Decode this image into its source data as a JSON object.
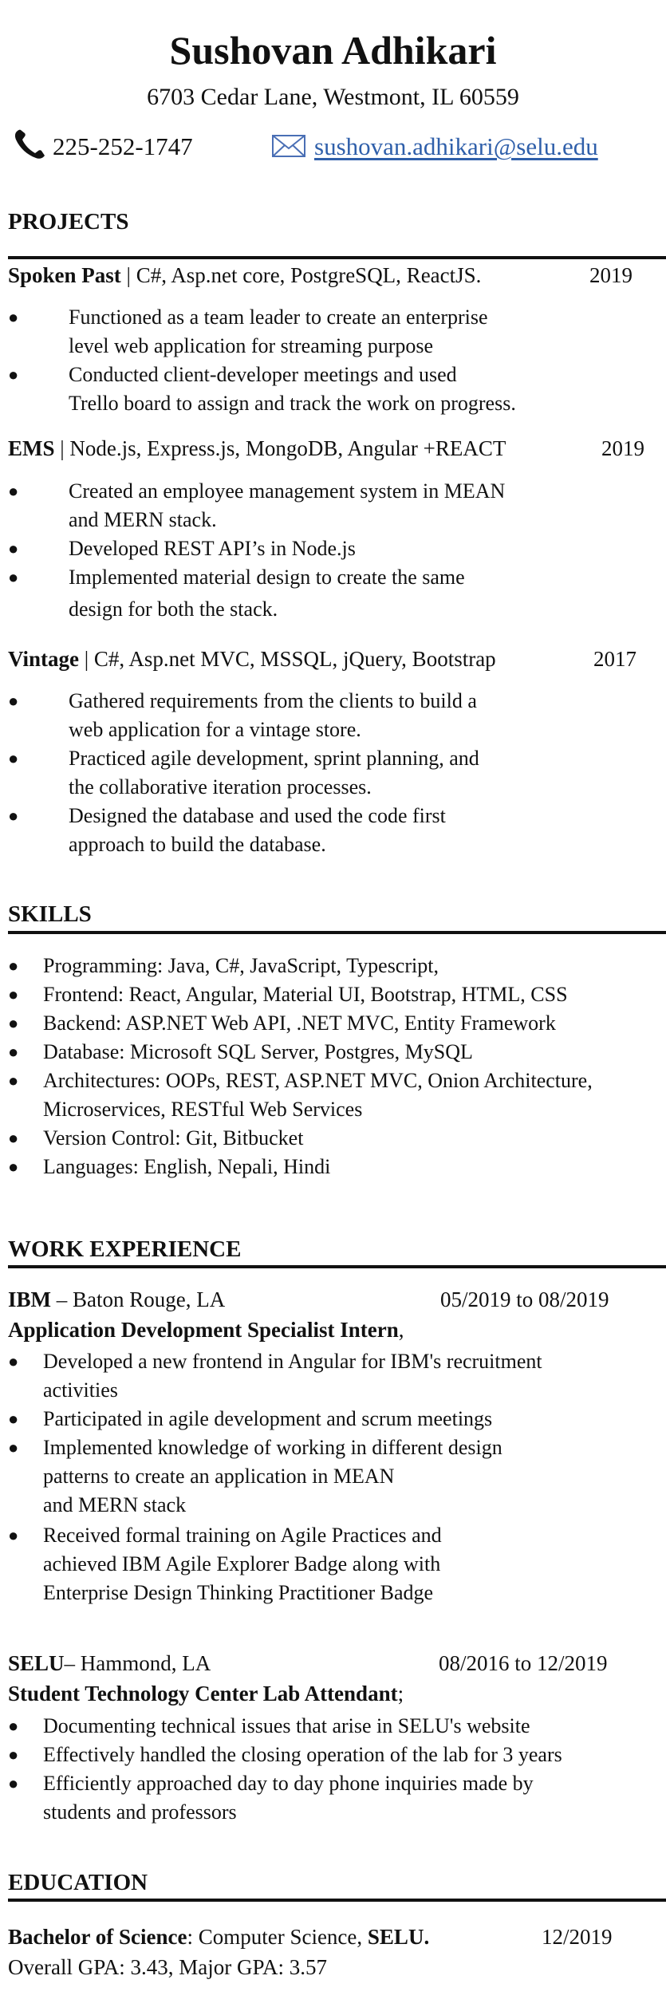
{
  "header": {
    "name": "Sushovan Adhikari",
    "address": "6703 Cedar Lane, Westmont, IL 60559",
    "phone": "225-252-1747",
    "email": "sushovan.adhikari@selu.edu",
    "icons": {
      "phone": "phone-icon",
      "email": "envelope-icon"
    },
    "email_color": "#2f5faa"
  },
  "projects": {
    "title": "PROJECTS",
    "items": [
      {
        "name": "Spoken Past",
        "tech": "| C#, Asp.net core, PostgreSQL, ReactJS.",
        "year": "2019",
        "bullets": [
          [
            "Functioned as a team leader to create an enterprise",
            " level web application for streaming purpose"
          ],
          [
            "Conducted client-developer meetings and used",
            "Trello board to assign and track the work on progress."
          ]
        ]
      },
      {
        "name": "EMS",
        "tech": "| Node.js, Express.js, MongoDB, Angular +REACT",
        "year": "2019",
        "bullets": [
          [
            "Created an employee management system in MEAN",
            " and MERN stack."
          ],
          [
            "Developed REST API’s in Node.js"
          ],
          [
            "Implemented material design to create the same",
            "design for both the stack."
          ]
        ]
      },
      {
        "name": "Vintage",
        "tech": "| C#, Asp.net MVC, MSSQL, jQuery, Bootstrap",
        "year": "2017",
        "bullets": [
          [
            "Gathered requirements from the clients to build a",
            "web application for a vintage store."
          ],
          [
            "Practiced agile development, sprint planning, and",
            " the collaborative iteration processes."
          ],
          [
            "Designed the database and used the code first",
            "approach to build the database."
          ]
        ]
      }
    ]
  },
  "skills": {
    "title": "SKILLS",
    "items": [
      [
        "Programming: Java, C#, JavaScript, Typescript,"
      ],
      [
        "Frontend: React, Angular, Material UI, Bootstrap, HTML, CSS"
      ],
      [
        "Backend: ASP.NET Web API, .NET MVC, Entity Framework"
      ],
      [
        "Database: Microsoft SQL Server, Postgres, MySQL"
      ],
      [
        "Architectures: OOPs, REST, ASP.NET MVC, Onion Architecture,",
        " Microservices, RESTful Web Services"
      ],
      [
        "Version Control: Git, Bitbucket"
      ],
      [
        "Languages: English, Nepali, Hindi"
      ]
    ]
  },
  "experience": {
    "title": "WORK EXPERIENCE",
    "jobs": [
      {
        "company": "IBM",
        "location": " – Baton Rouge, LA",
        "dates": "05/2019 to 08/2019",
        "role": "Application Development Specialist Intern",
        "role_suffix": ",",
        "bullets": [
          [
            "Developed a new frontend in Angular for IBM's recruitment",
            "activities"
          ],
          [
            "Participated in agile development and scrum meetings"
          ],
          [
            "Implemented knowledge of working in different design",
            "patterns to create an application in MEAN",
            "and MERN stack"
          ],
          [
            "Received formal training on Agile Practices and",
            "achieved IBM Agile Explorer Badge along with",
            " Enterprise Design Thinking Practitioner Badge"
          ]
        ]
      },
      {
        "company": "SELU",
        "location": "– Hammond, LA",
        "dates": "08/2016 to 12/2019",
        "role": "Student Technology Center Lab Attendant",
        "role_suffix": ";",
        "bullets": [
          [
            "Documenting technical issues that arise in SELU's website"
          ],
          [
            "Effectively handled the closing operation of the lab for 3 years"
          ],
          [
            "Efficiently approached day to day phone inquiries made by",
            "students and professors"
          ]
        ]
      }
    ]
  },
  "education": {
    "title": "EDUCATION",
    "degree": "Bachelor of Science",
    "field": ": Computer Science, ",
    "school": "SELU.",
    "date": "12/2019",
    "gpa": "Overall GPA: 3.43, Major GPA: 3.57"
  }
}
